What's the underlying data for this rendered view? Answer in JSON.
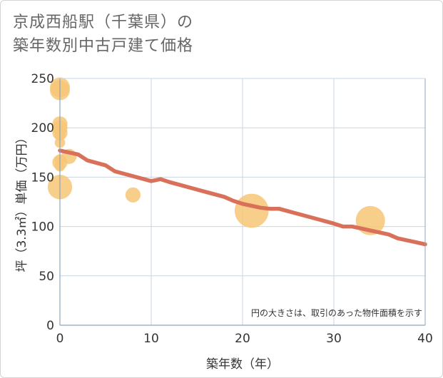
{
  "title_lines": [
    "京成西船駅（千葉県）の",
    "築年数別中古戸建て価格"
  ],
  "chart_data": {
    "type": "scatter",
    "title": "京成西船駅（千葉県）の築年数別中古戸建て価格",
    "xlabel": "築年数（年）",
    "ylabel": "坪（3.3㎡）単価（万円）",
    "xlim": [
      0,
      40
    ],
    "ylim": [
      0,
      250
    ],
    "xticks": [
      0,
      10,
      20,
      30,
      40
    ],
    "yticks": [
      0,
      50,
      100,
      150,
      200,
      250
    ],
    "grid": true,
    "note": "円の大きさは、取引のあった物件面積を示す",
    "colors": {
      "bubble": "#f7c677",
      "trend": "#d9705a",
      "grid": "#c9d6e3",
      "axis": "#8fa5bd"
    },
    "bubbles": [
      {
        "x": 0,
        "y": 241,
        "size": 3
      },
      {
        "x": 0,
        "y": 238,
        "size": 3
      },
      {
        "x": 0,
        "y": 204,
        "size": 2
      },
      {
        "x": 0,
        "y": 200,
        "size": 2
      },
      {
        "x": 0,
        "y": 195,
        "size": 2
      },
      {
        "x": 0,
        "y": 192,
        "size": 1
      },
      {
        "x": 0,
        "y": 185,
        "size": 1
      },
      {
        "x": 0,
        "y": 168,
        "size": 1
      },
      {
        "x": 0,
        "y": 165,
        "size": 2
      },
      {
        "x": 0,
        "y": 161,
        "size": 1
      },
      {
        "x": 0,
        "y": 140,
        "size": 4
      },
      {
        "x": 1,
        "y": 171,
        "size": 2
      },
      {
        "x": 8,
        "y": 132,
        "size": 2
      },
      {
        "x": 21,
        "y": 116,
        "size": 6
      },
      {
        "x": 34,
        "y": 106,
        "size": 5
      }
    ],
    "trend": {
      "x": [
        0,
        2,
        3,
        5,
        6,
        8,
        10,
        11,
        12,
        14,
        16,
        18,
        19,
        20,
        22,
        23,
        24,
        26,
        28,
        30,
        31,
        32,
        34,
        36,
        37,
        39,
        40
      ],
      "y": [
        177,
        173,
        167,
        162,
        156,
        151,
        146,
        148,
        145,
        140,
        135,
        130,
        126,
        123,
        119,
        118,
        118,
        113,
        108,
        103,
        100,
        100,
        96,
        92,
        88,
        84,
        82
      ]
    }
  }
}
